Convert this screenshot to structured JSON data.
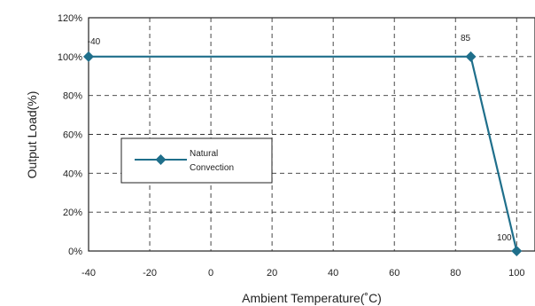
{
  "chart_data": {
    "type": "line",
    "xlabel": "Ambient Temperature(˚C)",
    "ylabel": "Output Load(%)",
    "xlim": [
      -40,
      100
    ],
    "ylim": [
      0,
      120
    ],
    "x_ticks": [
      -40,
      -20,
      0,
      20,
      40,
      60,
      80,
      100
    ],
    "y_ticks": [
      0,
      20,
      40,
      60,
      80,
      100,
      120
    ],
    "x_tick_labels": [
      "-40",
      "-20",
      "0",
      "20",
      "40",
      "60",
      "80",
      "100"
    ],
    "y_tick_labels": [
      "0%",
      "20%",
      "40%",
      "60%",
      "80%",
      "100%",
      "120%"
    ],
    "grid": true,
    "legend_position": "left",
    "legend_label_lines": [
      "Natural",
      "Convection"
    ],
    "series": [
      {
        "name": "Natural Convection",
        "color": "#1f6f8b",
        "x": [
          -40,
          85,
          100
        ],
        "y": [
          100,
          100,
          0
        ]
      }
    ],
    "annotations": [
      "-40",
      "85",
      "100"
    ]
  }
}
